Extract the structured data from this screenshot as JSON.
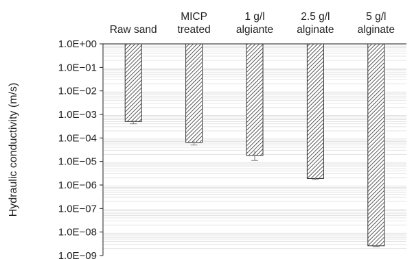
{
  "chart_data": {
    "type": "bar",
    "orientation": "vertical-downward",
    "categories": [
      [
        "Raw sand"
      ],
      [
        "MICP",
        "treated"
      ],
      [
        "1 g/l",
        "algiante"
      ],
      [
        "2.5 g/l",
        "alginate"
      ],
      [
        "5 g/l",
        "alginate"
      ]
    ],
    "values": [
      0.0005,
      6.5e-05,
      1.8e-05,
      1.9e-06,
      2.6e-09
    ],
    "error_lower": [
      0.0004,
      5e-05,
      1.1e-05,
      1.7e-06,
      2.4e-09
    ],
    "error_upper": [
      0.00055,
      7.5e-05,
      2.8e-05,
      2.1e-06,
      2.8e-09
    ],
    "title": "",
    "xlabel": "",
    "ylabel": "Hydraulic conductivity (m/s)",
    "yscale": "log",
    "ylim": [
      1e-09,
      1
    ],
    "y_ticks": [
      {
        "value": 1.0,
        "label": "1.0E+00"
      },
      {
        "value": 0.1,
        "label": "1.0E−01"
      },
      {
        "value": 0.01,
        "label": "1.0E−02"
      },
      {
        "value": 0.001,
        "label": "1.0E−03"
      },
      {
        "value": 0.0001,
        "label": "1.0E−04"
      },
      {
        "value": 1e-05,
        "label": "1.0E−05"
      },
      {
        "value": 1e-06,
        "label": "1.0E−06"
      },
      {
        "value": 1e-07,
        "label": "1.0E−07"
      },
      {
        "value": 1e-08,
        "label": "1.0E−08"
      },
      {
        "value": 1e-09,
        "label": "1.0E−09"
      }
    ],
    "category_axis_position": "top",
    "bar_fill": "diagonal-hatch",
    "bar_color": "#333333",
    "grid": "horizontal-minor",
    "grid_color": "#dedede",
    "legend": "none"
  }
}
